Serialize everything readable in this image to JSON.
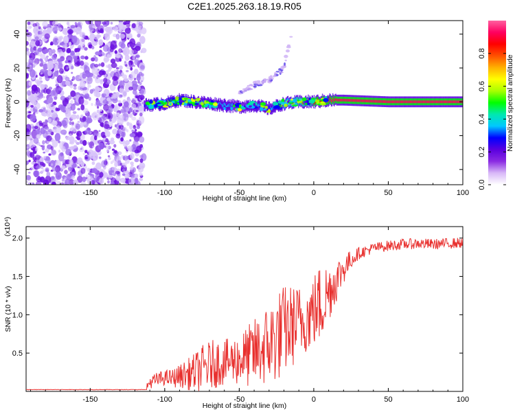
{
  "chart_data": [
    {
      "type": "heatmap",
      "title": "C2E1.2025.263.18.19.R05",
      "xlabel": "Height of straight line (km)",
      "ylabel": "Frequency (Hz)",
      "xlim": [
        -193,
        100
      ],
      "ylim": [
        -49,
        48
      ],
      "xticks": [
        -150,
        -100,
        -50,
        0,
        50,
        100
      ],
      "xtick_labels": [
        "-150",
        "-100",
        "-50",
        "0",
        "50",
        "100"
      ],
      "yticks": [
        -40,
        -20,
        0,
        20,
        40
      ],
      "ytick_labels": [
        "-40",
        "-20",
        "0",
        "20",
        "40"
      ],
      "noise_region_x": [
        -193,
        -114
      ],
      "ridge": {
        "x": [
          -114,
          -100,
          -90,
          -80,
          -70,
          -60,
          -50,
          -40,
          -30,
          -20,
          -10,
          0,
          10,
          20,
          50,
          100
        ],
        "freq": [
          -2,
          -1,
          1,
          0,
          -1,
          -2,
          -3,
          -2,
          -4,
          -1,
          0,
          0,
          1,
          1,
          0,
          0
        ],
        "amplitude": [
          0.3,
          0.55,
          0.5,
          0.45,
          0.35,
          0.35,
          0.3,
          0.35,
          0.3,
          0.6,
          0.75,
          0.85,
          0.9,
          0.95,
          0.95,
          0.95
        ]
      },
      "faint_branch": {
        "x": [
          -50,
          -40,
          -30,
          -20,
          -15
        ],
        "freq": [
          5,
          10,
          13,
          20,
          40
        ]
      },
      "colorbar": {
        "label": "Normalized spectral amplitude",
        "range": [
          0,
          1
        ],
        "ticks": [
          0.0,
          0.2,
          0.4,
          0.6,
          0.8
        ],
        "tick_labels": [
          "0.0",
          "0.2",
          "0.4",
          "0.6",
          "0.8"
        ],
        "colors": [
          "#ffffff",
          "#d8b8f8",
          "#8a2be2",
          "#5a00e0",
          "#0000ff",
          "#00c8ff",
          "#00e8b0",
          "#00ff00",
          "#a8ff00",
          "#ffff00",
          "#ffb000",
          "#ff5000",
          "#ff0000",
          "#ff0060",
          "#ff60a0"
        ]
      }
    },
    {
      "type": "line",
      "xlabel": "Height of straight line (km)",
      "ylabel": "SNR (10 * v/v)",
      "y_multiplier": "(x10⁴)",
      "xlim": [
        -193,
        100
      ],
      "ylim": [
        0,
        2.15
      ],
      "xticks": [
        -150,
        -100,
        -50,
        0,
        50,
        100
      ],
      "xtick_labels": [
        "-150",
        "-100",
        "-50",
        "0",
        "50",
        "100"
      ],
      "yticks": [
        0.5,
        1.0,
        1.5,
        2.0
      ],
      "ytick_labels": [
        "0.5",
        "1.0",
        "1.5",
        "2.0"
      ],
      "series": [
        {
          "name": "SNR",
          "color": "#e8302e",
          "x": [
            -193,
            -150,
            -115,
            -112,
            -110,
            -105,
            -100,
            -95,
            -90,
            -85,
            -80,
            -75,
            -70,
            -65,
            -60,
            -55,
            -50,
            -45,
            -40,
            -35,
            -30,
            -25,
            -20,
            -15,
            -10,
            -5,
            0,
            5,
            10,
            15,
            20,
            25,
            30,
            40,
            50,
            60,
            70,
            80,
            90,
            100
          ],
          "base": [
            0.02,
            0.02,
            0.02,
            0.06,
            0.12,
            0.15,
            0.18,
            0.17,
            0.2,
            0.22,
            0.25,
            0.3,
            0.34,
            0.37,
            0.38,
            0.4,
            0.42,
            0.45,
            0.5,
            0.55,
            0.62,
            0.7,
            0.8,
            0.85,
            0.9,
            0.95,
            1.05,
            1.15,
            1.3,
            1.45,
            1.6,
            1.72,
            1.8,
            1.87,
            1.9,
            1.92,
            1.93,
            1.92,
            1.93,
            1.94
          ],
          "noise": [
            0.0,
            0.0,
            0.0,
            0.04,
            0.08,
            0.1,
            0.1,
            0.12,
            0.15,
            0.2,
            0.25,
            0.3,
            0.32,
            0.32,
            0.3,
            0.3,
            0.35,
            0.4,
            0.45,
            0.5,
            0.55,
            0.6,
            0.6,
            0.55,
            0.5,
            0.45,
            0.5,
            0.55,
            0.4,
            0.3,
            0.2,
            0.12,
            0.08,
            0.07,
            0.07,
            0.07,
            0.07,
            0.07,
            0.07,
            0.07
          ]
        }
      ]
    }
  ]
}
